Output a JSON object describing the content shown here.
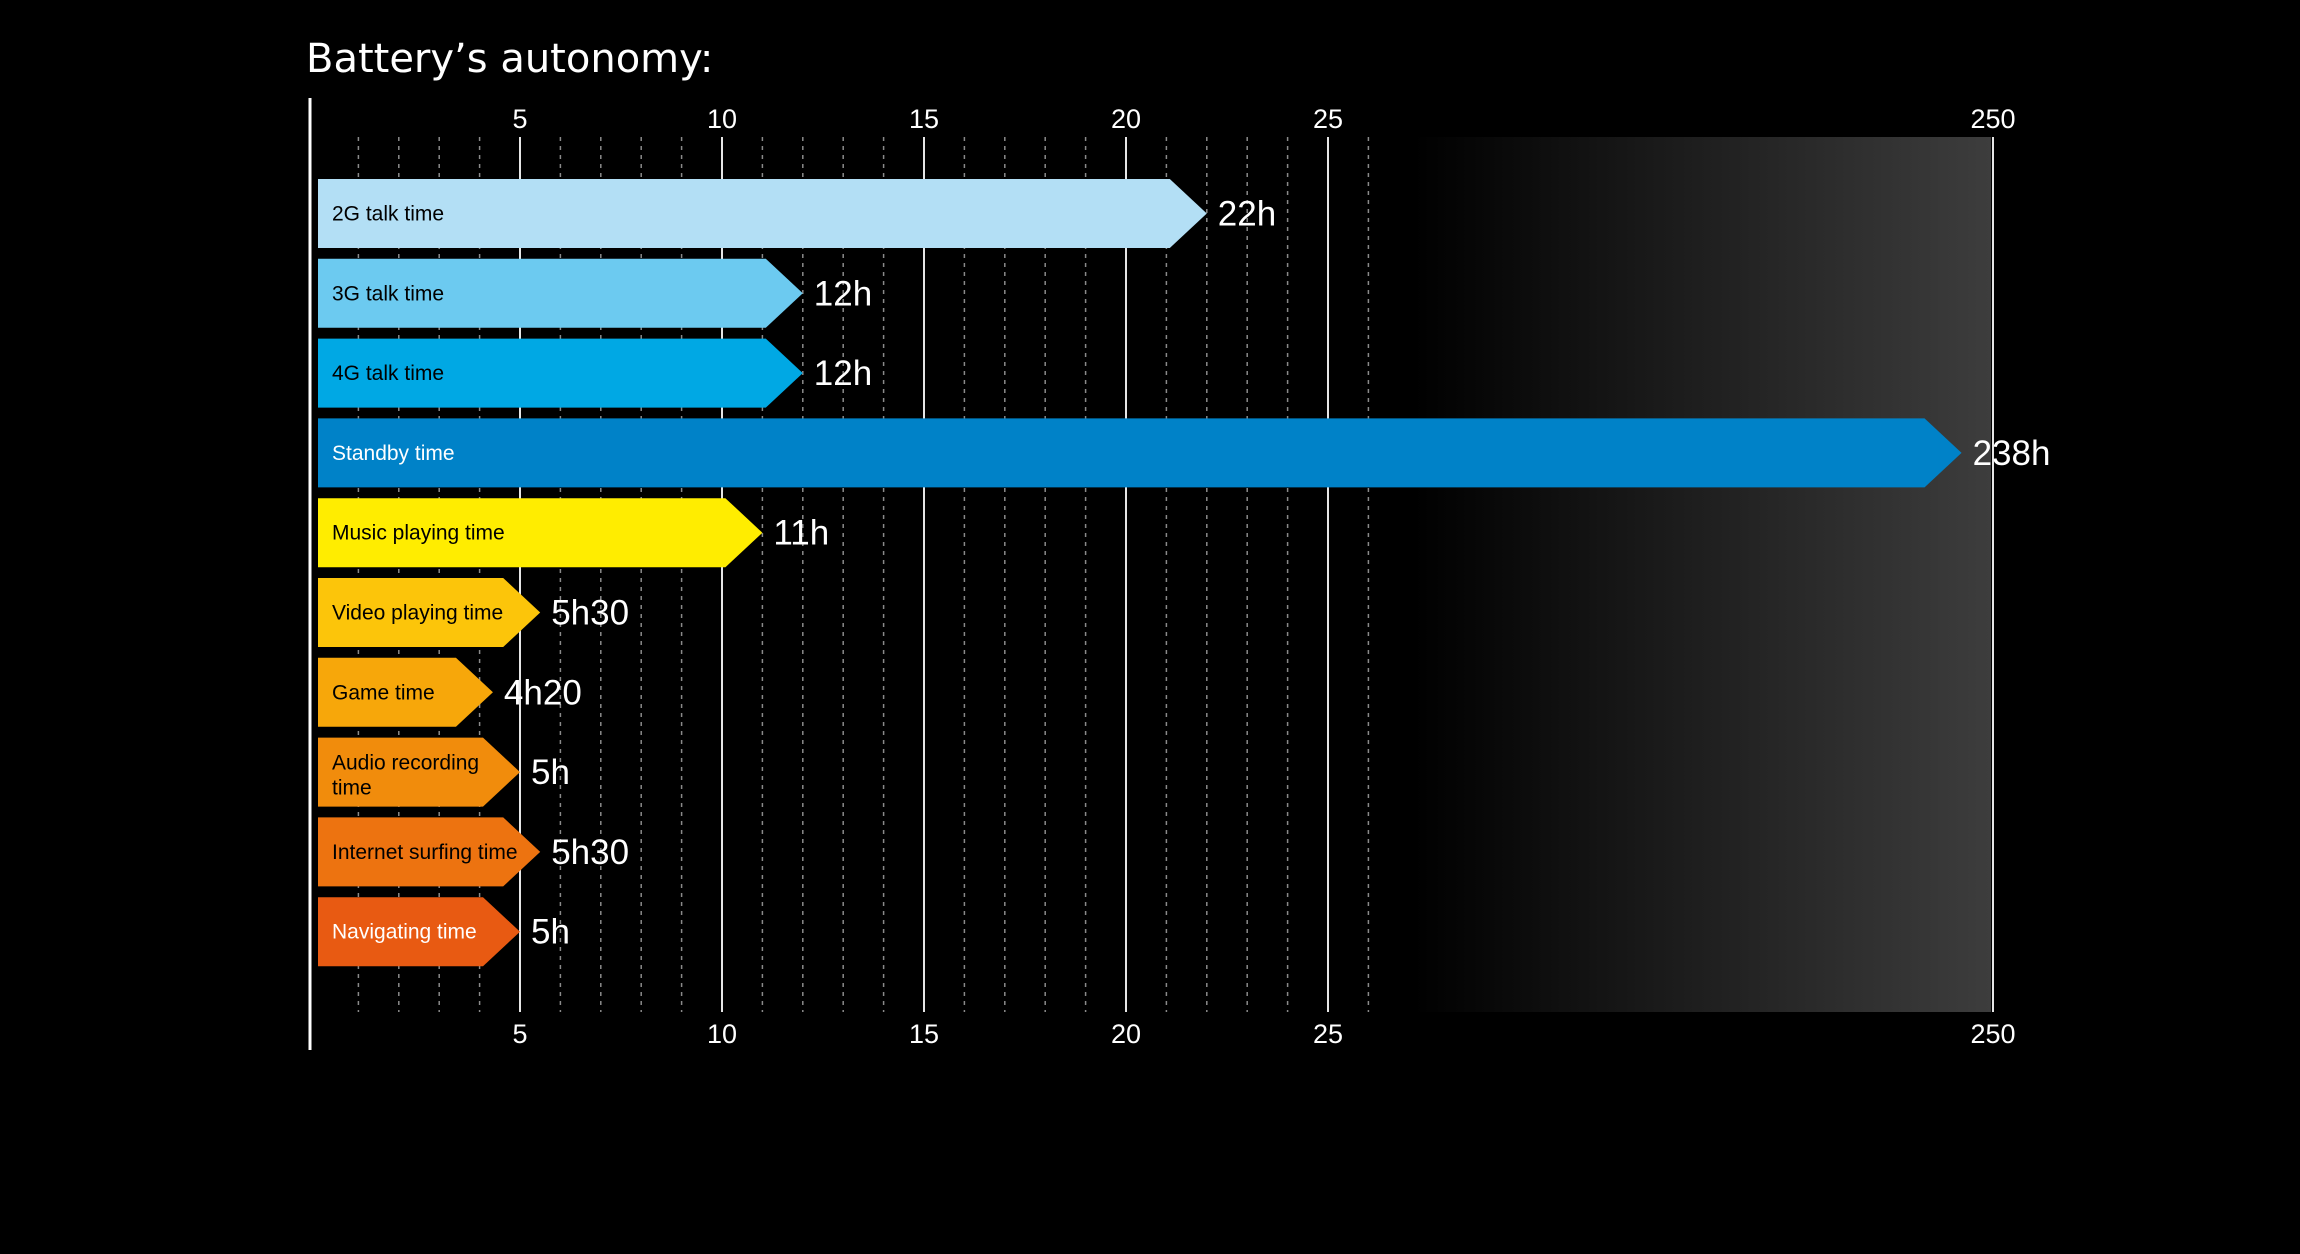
{
  "chart_data": {
    "type": "bar",
    "orientation": "horizontal",
    "title": "Battery’s autonomy:",
    "xlabel": "",
    "ylabel": "",
    "unit": "hours",
    "axis_segments": [
      {
        "range": [
          0,
          27
        ],
        "linear": true
      },
      {
        "range": [
          27,
          250
        ],
        "compressed": true
      }
    ],
    "ticks": [
      {
        "value": 5,
        "label": "5"
      },
      {
        "value": 10,
        "label": "10"
      },
      {
        "value": 15,
        "label": "15"
      },
      {
        "value": 20,
        "label": "20"
      },
      {
        "value": 25,
        "label": "25"
      },
      {
        "value": 250,
        "label": "250"
      }
    ],
    "minor_grid_step": 1,
    "grid": true,
    "legend": "none",
    "categories": [
      "2G talk time",
      "3G talk time",
      "4G talk time",
      "Standby time",
      "Music playing time",
      "Video playing time",
      "Game time",
      "Audio recording time",
      "Internet surfing time",
      "Navigating time"
    ],
    "values": [
      22,
      12,
      12,
      238,
      11,
      5.5,
      4.33,
      5,
      5.5,
      5
    ],
    "value_labels": [
      "22h",
      "12h",
      "12h",
      "238h",
      "11h",
      "5h30",
      "4h20",
      "5h",
      "5h30",
      "5h"
    ],
    "colors": [
      "#b3dff5",
      "#6ccaf0",
      "#00a8e4",
      "#0082c8",
      "#ffed00",
      "#fcc50a",
      "#f7a70a",
      "#f18c0c",
      "#ed7310",
      "#e85a12"
    ],
    "label_colors": [
      "#000000",
      "#000000",
      "#000000",
      "#ffffff",
      "#000000",
      "#000000",
      "#000000",
      "#000000",
      "#000000",
      "#ffffff"
    ]
  }
}
